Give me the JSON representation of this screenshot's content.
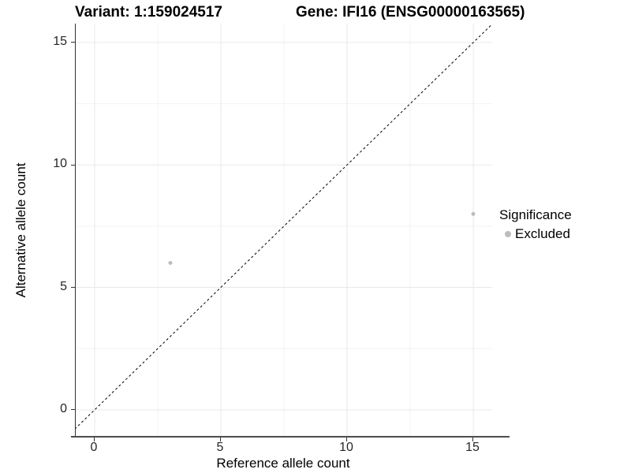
{
  "chart_data": {
    "type": "scatter",
    "titles": {
      "variant": "Variant: 1:159024517",
      "gene": "Gene: IFI16 (ENSG00000163565)"
    },
    "xlabel": "Reference allele count",
    "ylabel": "Alternative allele count",
    "x_ticks": [
      0,
      5,
      10,
      15
    ],
    "y_ticks": [
      0,
      5,
      10,
      15
    ],
    "minor_ticks": [
      2.5,
      7.5,
      12.5
    ],
    "xlim": [
      -0.75,
      15.75
    ],
    "ylim": [
      -1.1,
      15.77
    ],
    "grid": true,
    "points": [
      {
        "x": 3,
        "y": 6,
        "significance": "Excluded"
      },
      {
        "x": 15,
        "y": 8,
        "significance": "Excluded"
      }
    ],
    "identity_line": {
      "type": "y=x",
      "style": "dashed",
      "color": "#000000"
    },
    "legend": {
      "title": "Significance",
      "position": "right",
      "items": [
        {
          "label": "Excluded",
          "color": "#bdbdbd"
        }
      ]
    },
    "colors": {
      "point": "#bdbdbd",
      "grid_major": "#e9e9e9",
      "grid_minor": "#f3f3f3",
      "axis_line": "#333333",
      "point_radius_px": 2.5
    }
  }
}
